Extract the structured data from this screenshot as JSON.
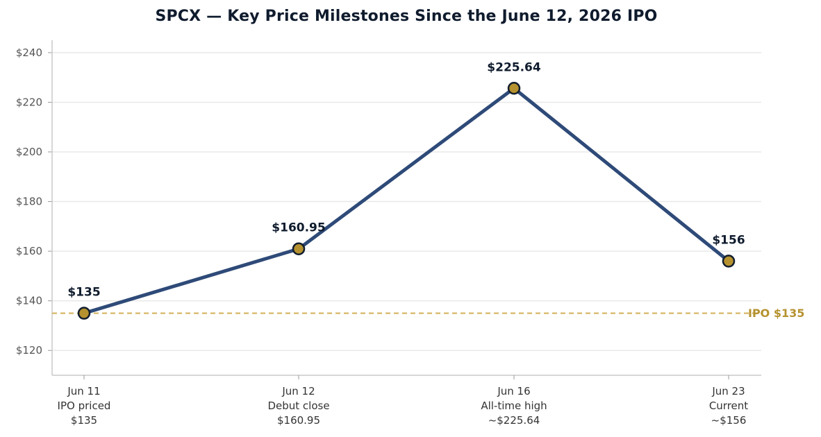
{
  "chart_data": {
    "type": "line",
    "title": "SPCX — Key Price Milestones Since the June 12, 2026 IPO",
    "xlabel": "",
    "ylabel": "",
    "ylim": [
      110,
      245
    ],
    "yticks": [
      120,
      140,
      160,
      180,
      200,
      220,
      240
    ],
    "ytick_labels": [
      "$120",
      "$140",
      "$160",
      "$180",
      "$200",
      "$220",
      "$240"
    ],
    "categories": [
      [
        "Jun 11",
        "IPO priced",
        "$135"
      ],
      [
        "Jun 12",
        "Debut close",
        "$160.95"
      ],
      [
        "Jun 16",
        "All-time high",
        "~$225.64"
      ],
      [
        "Jun 23",
        "Current",
        "~$156"
      ]
    ],
    "x_positions": [
      11,
      12,
      16,
      23
    ],
    "series": [
      {
        "values": [
          135,
          160.95,
          225.64,
          156
        ],
        "data_labels": [
          "$135",
          "$160.95",
          "$225.64",
          "$156"
        ],
        "color": "#2e4a78",
        "marker_color": "#b5922f",
        "marker_edge": "#111d2e"
      }
    ],
    "reference_line": {
      "value": 135,
      "label": "IPO $135",
      "color": "#d4b35f",
      "label_color": "#b5922f",
      "style": "dashed"
    },
    "grid": "horizontal",
    "legend": "none"
  }
}
